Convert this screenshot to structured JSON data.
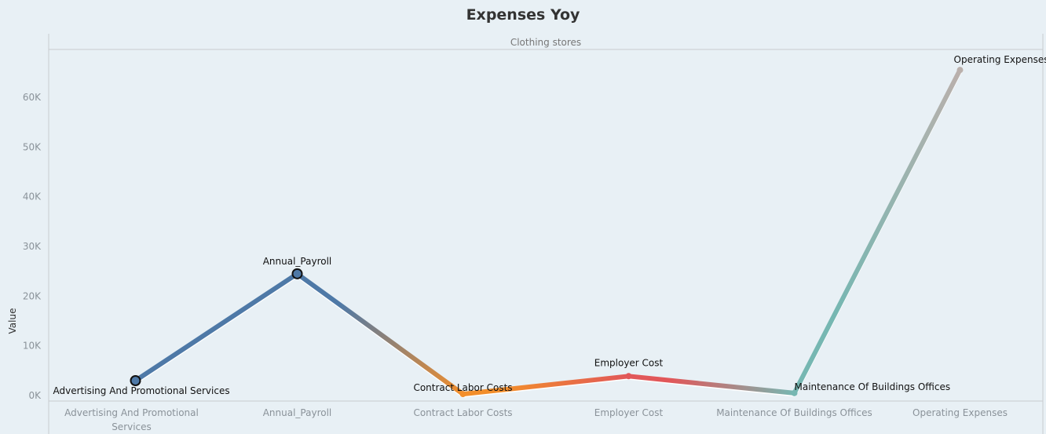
{
  "title": "Expenses Yoy",
  "chart_data": {
    "type": "line",
    "title": "Expenses Yoy",
    "panel": "Clothing stores",
    "xlabel": "",
    "ylabel": "Value",
    "ylim": [
      0,
      70000
    ],
    "yticks": [
      0,
      10000,
      20000,
      30000,
      40000,
      50000,
      60000
    ],
    "ytick_labels": [
      "0K",
      "10K",
      "20K",
      "30K",
      "40K",
      "50K",
      "60K"
    ],
    "categories": [
      "Advertising And Promotional Services",
      "Annual_Payroll",
      "Contract Labor Costs",
      "Employer Cost",
      "Maintenance Of Buildings Offices",
      "Operating Expenses"
    ],
    "category_labels": [
      [
        "Advertising And Promotional",
        "Services"
      ],
      [
        "Annual_Payroll"
      ],
      [
        "Contract Labor Costs"
      ],
      [
        "Employer Cost"
      ],
      [
        "Maintenance Of Buildings Offices"
      ],
      [
        "Operating Expenses"
      ]
    ],
    "values": [
      3000,
      24500,
      300,
      3900,
      500,
      65500
    ],
    "point_labels": [
      "Advertising And Promotional Services",
      "Annual_Payroll",
      "Contract Labor Costs",
      "Employer Cost",
      "Maintenance Of Buildings Offices",
      "Operating Expenses"
    ],
    "point_colors": [
      "#4e79a7",
      "#4e79a7",
      "#f28e2b",
      "#e15759",
      "#76b7b2",
      "#bab0ac"
    ],
    "grid": false,
    "legend": "none"
  }
}
